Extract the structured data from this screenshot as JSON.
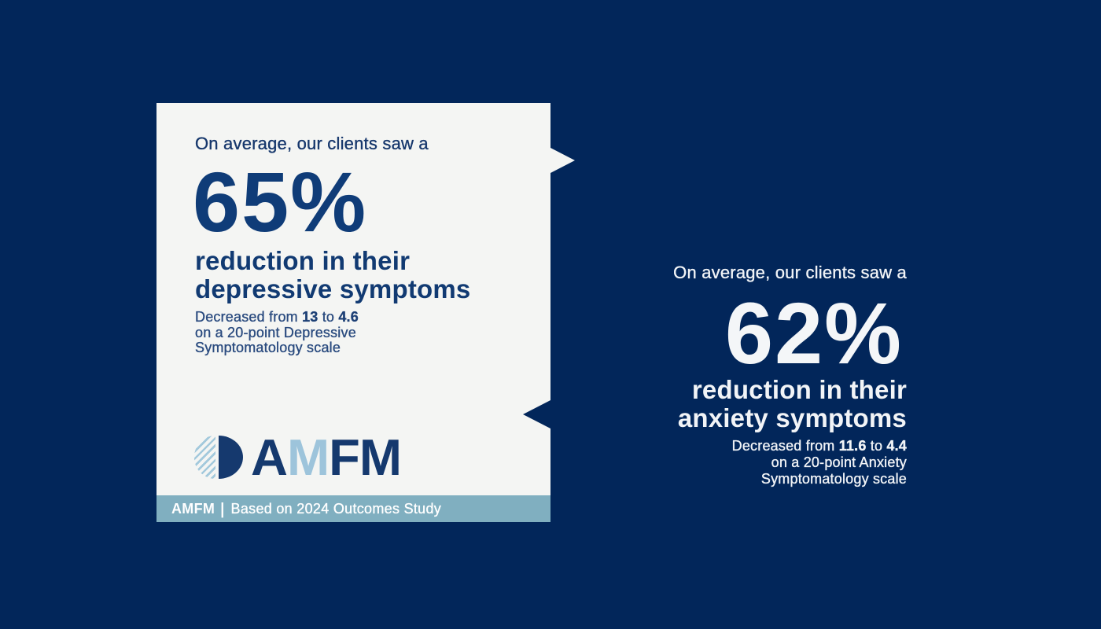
{
  "theme": {
    "background_navy": "#02265A",
    "card_background": "#F4F5F3",
    "footer_bar_blue": "#80AFC0",
    "navy_text": "#113A72",
    "note_navy_text": "#2A4B7F",
    "white_text": "#F2F4F7",
    "logo_navy": "#15396E",
    "logo_light_blue": "#9DC4DB"
  },
  "depression_card": {
    "eyebrow": "On average, our clients saw a",
    "percent": "65%",
    "headline_line1": "reduction in their",
    "headline_line2": "depressive symptoms",
    "note_prefix": "Decreased from",
    "note_from": "13",
    "note_connector": "to",
    "note_to": "4.6",
    "note_line2": "on a 20-point Depressive",
    "note_line3": "Symptomatology scale",
    "logo_letter1": "A",
    "logo_letter2": "M",
    "logo_letter3": "F",
    "logo_letter4": "M",
    "footer_brand": "AMFM",
    "footer_separator": "|",
    "footer_caption": "Based on 2024 Outcomes Study"
  },
  "anxiety_panel": {
    "eyebrow": "On average, our clients saw a",
    "percent": "62%",
    "headline_line1": "reduction in their",
    "headline_line2": "anxiety symptoms",
    "note_prefix": "Decreased from",
    "note_from": "11.6",
    "note_connector": "to",
    "note_to": "4.4",
    "note_line2": "on a 20-point Anxiety",
    "note_line3": "Symptomatology scale"
  }
}
